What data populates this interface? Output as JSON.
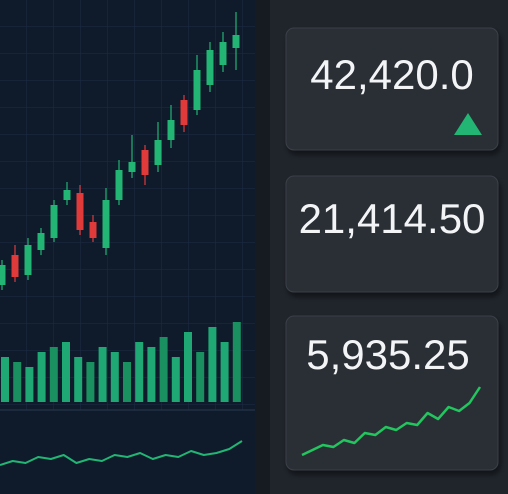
{
  "tickers": [
    {
      "price": "42,420.0"
    },
    {
      "price": "21,414.50"
    },
    {
      "price": "5,935.25"
    }
  ],
  "candles": [
    {
      "open": 15,
      "high": 40,
      "low": 10,
      "close": 35
    },
    {
      "open": 45,
      "high": 55,
      "low": 18,
      "close": 23
    },
    {
      "open": 25,
      "high": 62,
      "low": 20,
      "close": 55
    },
    {
      "open": 50,
      "high": 72,
      "low": 45,
      "close": 67
    },
    {
      "open": 62,
      "high": 100,
      "low": 58,
      "close": 95
    },
    {
      "open": 100,
      "high": 118,
      "low": 95,
      "close": 110
    },
    {
      "open": 107,
      "high": 115,
      "low": 65,
      "close": 70
    },
    {
      "open": 78,
      "high": 85,
      "low": 58,
      "close": 62
    },
    {
      "open": 52,
      "high": 112,
      "low": 45,
      "close": 100
    },
    {
      "open": 100,
      "high": 140,
      "low": 95,
      "close": 130
    },
    {
      "open": 128,
      "high": 165,
      "low": 122,
      "close": 138
    },
    {
      "open": 150,
      "high": 155,
      "low": 115,
      "close": 125
    },
    {
      "open": 135,
      "high": 178,
      "low": 128,
      "close": 160
    },
    {
      "open": 160,
      "high": 195,
      "low": 152,
      "close": 180
    },
    {
      "open": 200,
      "high": 205,
      "low": 168,
      "close": 175
    },
    {
      "open": 190,
      "high": 245,
      "low": 185,
      "close": 230
    },
    {
      "open": 215,
      "high": 258,
      "low": 208,
      "close": 250
    },
    {
      "open": 235,
      "high": 268,
      "low": 228,
      "close": 258
    },
    {
      "open": 252,
      "high": 288,
      "low": 230,
      "close": 265
    }
  ],
  "volume": [
    45,
    40,
    35,
    50,
    55,
    60,
    45,
    40,
    55,
    50,
    40,
    60,
    55,
    65,
    45,
    70,
    50,
    75,
    60,
    80
  ],
  "line": [
    10,
    14,
    12,
    18,
    16,
    20,
    12,
    16,
    14,
    20,
    18,
    22,
    16,
    20,
    18,
    24,
    20,
    22,
    26,
    34
  ],
  "sparkline": [
    0,
    5,
    10,
    8,
    15,
    12,
    22,
    20,
    28,
    25,
    32,
    30,
    42,
    36,
    48,
    44,
    52,
    68
  ]
}
